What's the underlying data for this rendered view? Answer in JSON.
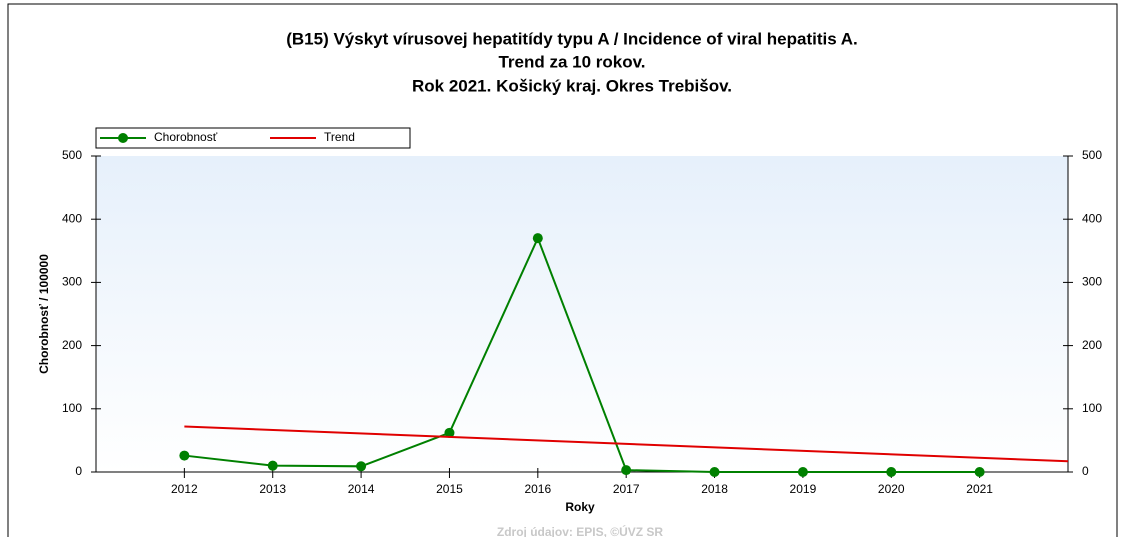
{
  "chart_data": {
    "type": "line",
    "title": [
      "(B15) Výskyt vírusovej hepatitídy typu A / Incidence of viral hepatitis A.",
      "Trend za 10 rokov.",
      "Rok 2021. Košický kraj. Okres Trebišov."
    ],
    "xlabel": "Roky",
    "ylabel": "Chorobnosť / 100000",
    "source": "Zdroj údajov: EPIS, ©ÚVZ SR",
    "xlim": [
      2011,
      2022
    ],
    "xticks": [
      2012,
      2013,
      2014,
      2015,
      2016,
      2017,
      2018,
      2019,
      2020,
      2021
    ],
    "ylim": [
      0,
      500
    ],
    "yticks": [
      0,
      100,
      200,
      300,
      400,
      500
    ],
    "y2lim": [
      0,
      500
    ],
    "y2ticks": [
      0,
      100,
      200,
      300,
      400,
      500
    ],
    "legend": "top-left",
    "series": [
      {
        "name": "Chorobnosť",
        "color": "#008000",
        "marker": true,
        "x": [
          2012,
          2013,
          2014,
          2015,
          2016,
          2017,
          2018,
          2019,
          2020,
          2021
        ],
        "values": [
          26,
          10,
          9,
          62,
          370,
          3,
          0,
          0,
          0,
          0
        ]
      },
      {
        "name": "Trend",
        "color": "#e00000",
        "marker": false,
        "x": [
          2012,
          2022
        ],
        "values": [
          72,
          17
        ]
      }
    ]
  }
}
